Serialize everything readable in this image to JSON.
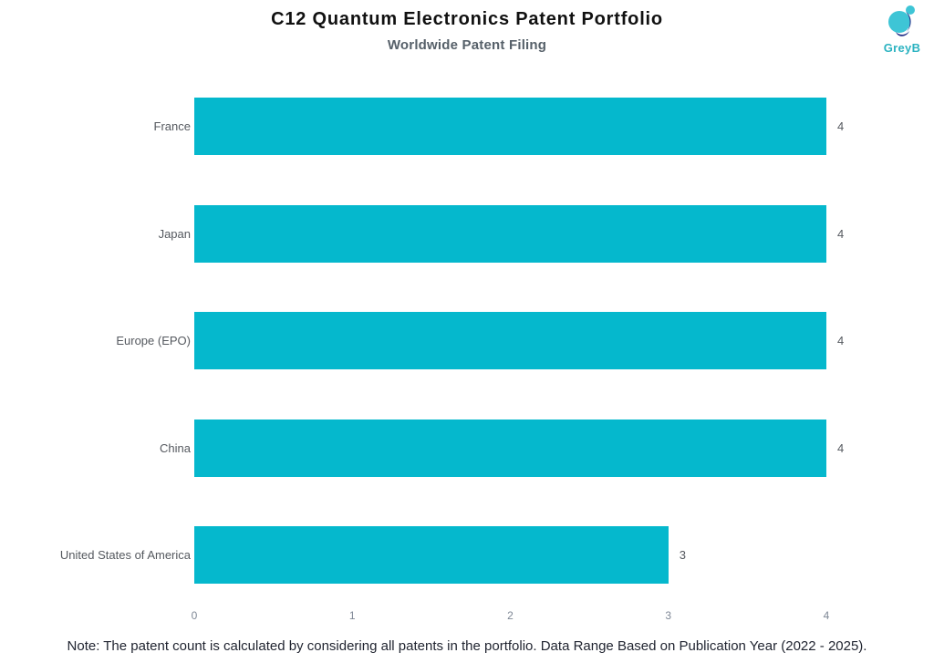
{
  "header": {
    "title": "C12 Quantum Electronics Patent Portfolio",
    "subtitle": "Worldwide Patent Filing",
    "logo_text": "GreyB"
  },
  "chart_data": {
    "type": "bar",
    "orientation": "horizontal",
    "title": "C12 Quantum Electronics Patent Portfolio",
    "subtitle": "Worldwide Patent Filing",
    "categories": [
      "France",
      "Japan",
      "Europe (EPO)",
      "China",
      "United States of America"
    ],
    "values": [
      4,
      4,
      4,
      4,
      3
    ],
    "xlabel": "",
    "ylabel": "",
    "xlim": [
      0,
      4
    ],
    "x_ticks": [
      "0",
      "1",
      "2",
      "3",
      "4"
    ],
    "grid": false,
    "legend": false,
    "value_labels_shown": true,
    "bar_color": "#05b8cd",
    "label_color": "#55595f",
    "tick_color": "#7f8896"
  },
  "footer": {
    "note": "Note: The patent count is calculated by considering all patents in the portfolio. Data Range Based on Publication Year (2022 - 2025)."
  },
  "colors": {
    "accent_teal": "#05b8cd",
    "logo_teal": "#2cb3c1",
    "logo_dark_blue": "#27348b",
    "title_color": "#111111",
    "subtitle_color": "#566069"
  }
}
